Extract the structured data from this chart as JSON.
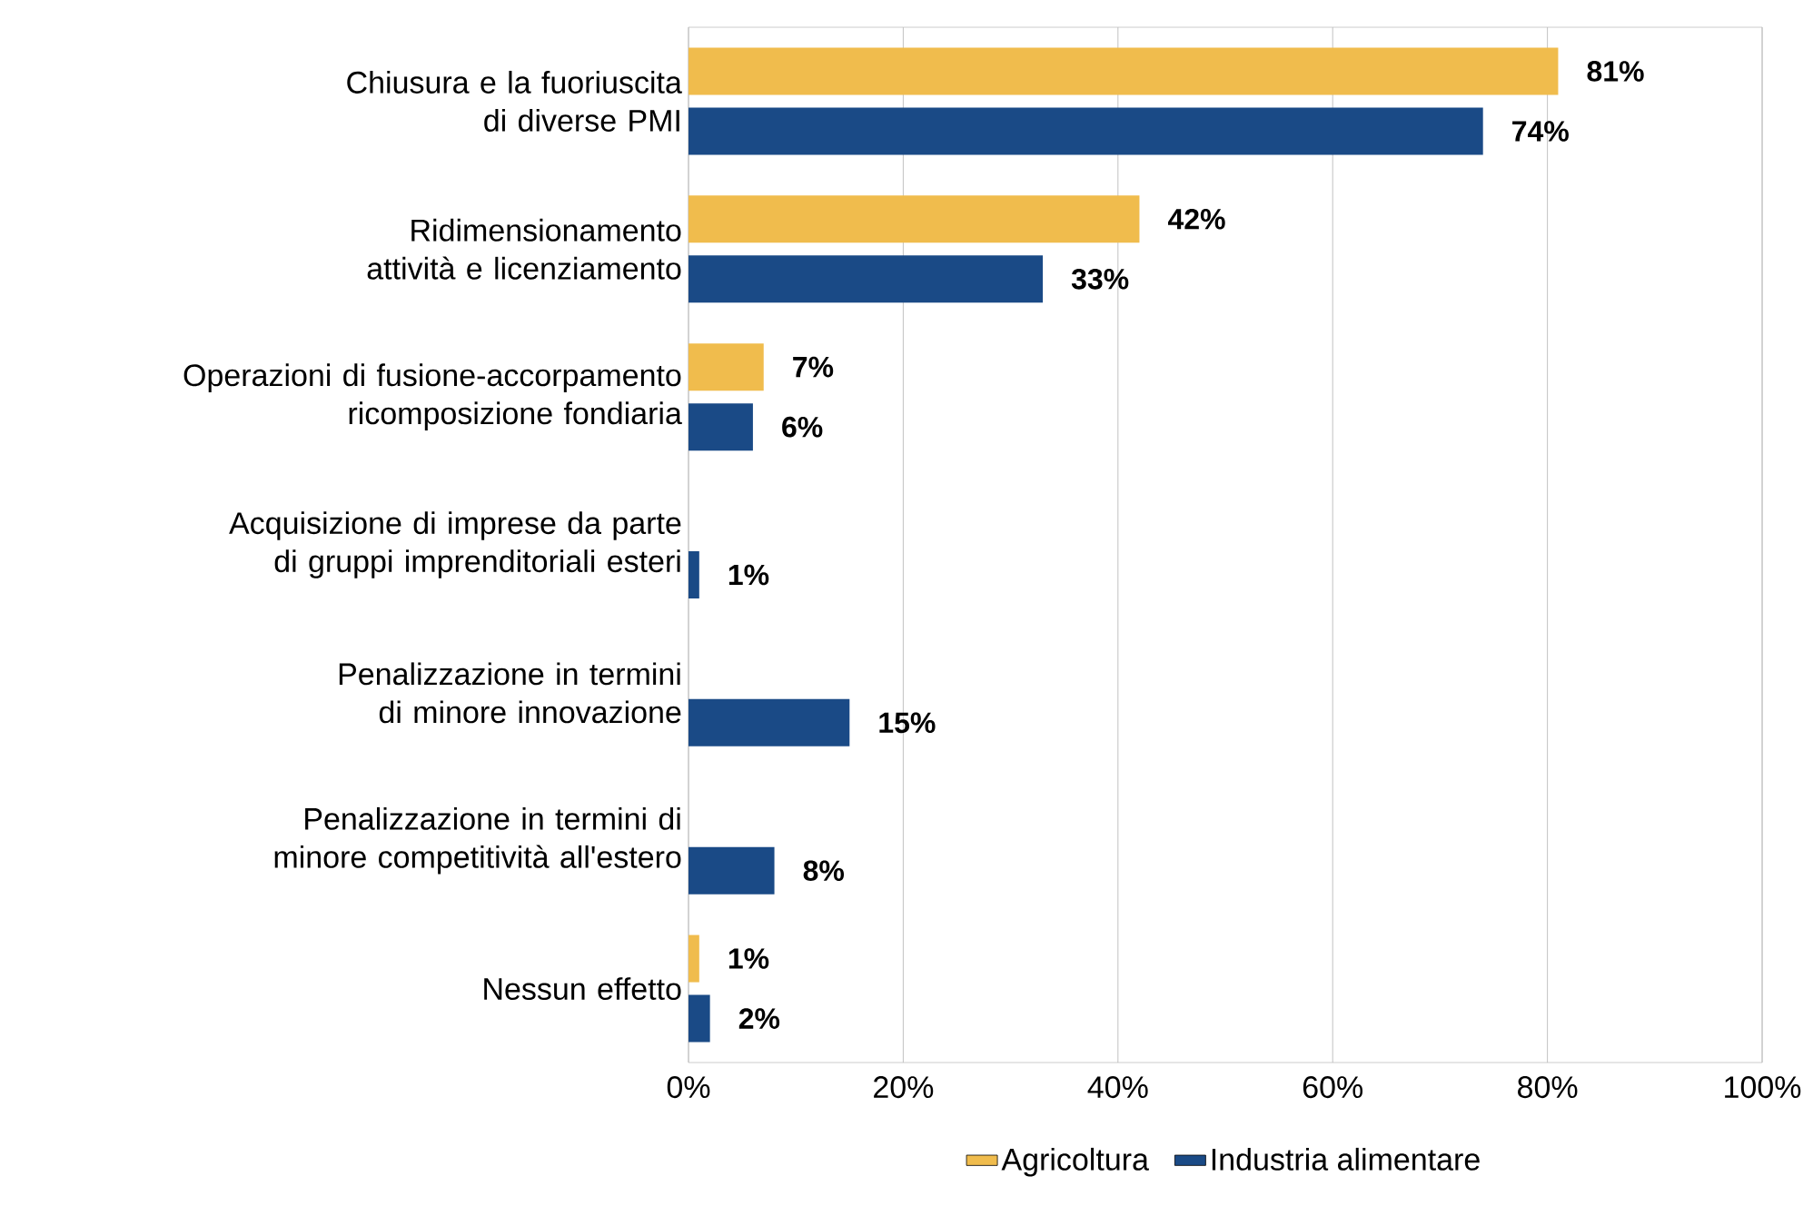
{
  "chart_data": {
    "type": "bar",
    "orientation": "horizontal",
    "categories": [
      "Chiusura e la fuoriuscita di diverse PMI",
      "Ridimensionamento attività e licenziamento",
      "Operazioni di fusione-accorpamento ricomposizione fondiaria",
      "Acquisizione di imprese da parte di gruppi imprenditoriali esteri",
      "Penalizzazione in termini di minore innovazione",
      "Penalizzazione in termini di minore competitività all'estero",
      "Nessun effetto"
    ],
    "series": [
      {
        "name": "Agricoltura",
        "color": "#f0bc4d",
        "values": [
          81,
          42,
          7,
          null,
          null,
          null,
          1
        ],
        "value_labels": [
          "81%",
          "42%",
          "7%",
          null,
          null,
          null,
          "1%"
        ]
      },
      {
        "name": "Industria alimentare",
        "color": "#1a4a86",
        "values": [
          74,
          33,
          6,
          1,
          15,
          8,
          2
        ],
        "value_labels": [
          "74%",
          "33%",
          "6%",
          "1%",
          "15%",
          "8%",
          "2%"
        ]
      }
    ],
    "xlim": [
      0,
      100
    ],
    "xticks": [
      {
        "value": 0,
        "label": "0%"
      },
      {
        "value": 20,
        "label": "20%"
      },
      {
        "value": 40,
        "label": "40%"
      },
      {
        "value": 60,
        "label": "60%"
      },
      {
        "value": 80,
        "label": "80%"
      },
      {
        "value": 100,
        "label": "100%"
      }
    ],
    "grid": "x",
    "legend": "bottom"
  }
}
